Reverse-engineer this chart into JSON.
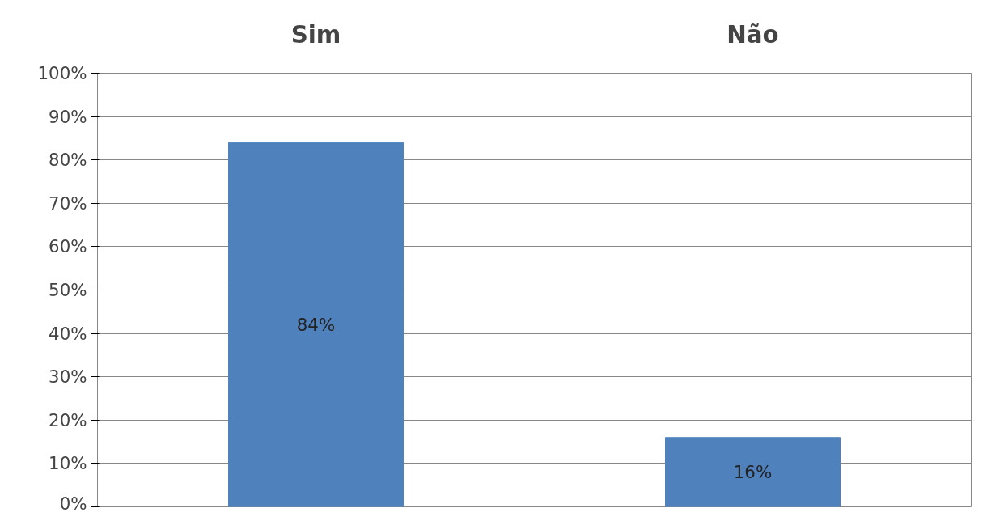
{
  "chart_data": {
    "type": "bar",
    "categories": [
      "Sim",
      "Não"
    ],
    "values": [
      84,
      16
    ],
    "color": "#4f81bd",
    "ylim": [
      0,
      100
    ],
    "yticks": [
      {
        "value": 0,
        "label": "0%"
      },
      {
        "value": 10,
        "label": "10%"
      },
      {
        "value": 20,
        "label": "20%"
      },
      {
        "value": 30,
        "label": "30%"
      },
      {
        "value": 40,
        "label": "40%"
      },
      {
        "value": 50,
        "label": "50%"
      },
      {
        "value": 60,
        "label": "60%"
      },
      {
        "value": 70,
        "label": "70%"
      },
      {
        "value": 80,
        "label": "80%"
      },
      {
        "value": 90,
        "label": "90%"
      },
      {
        "value": 100,
        "label": "100%"
      }
    ],
    "value_labels": [
      "84%",
      "16%"
    ],
    "grid": "y"
  }
}
